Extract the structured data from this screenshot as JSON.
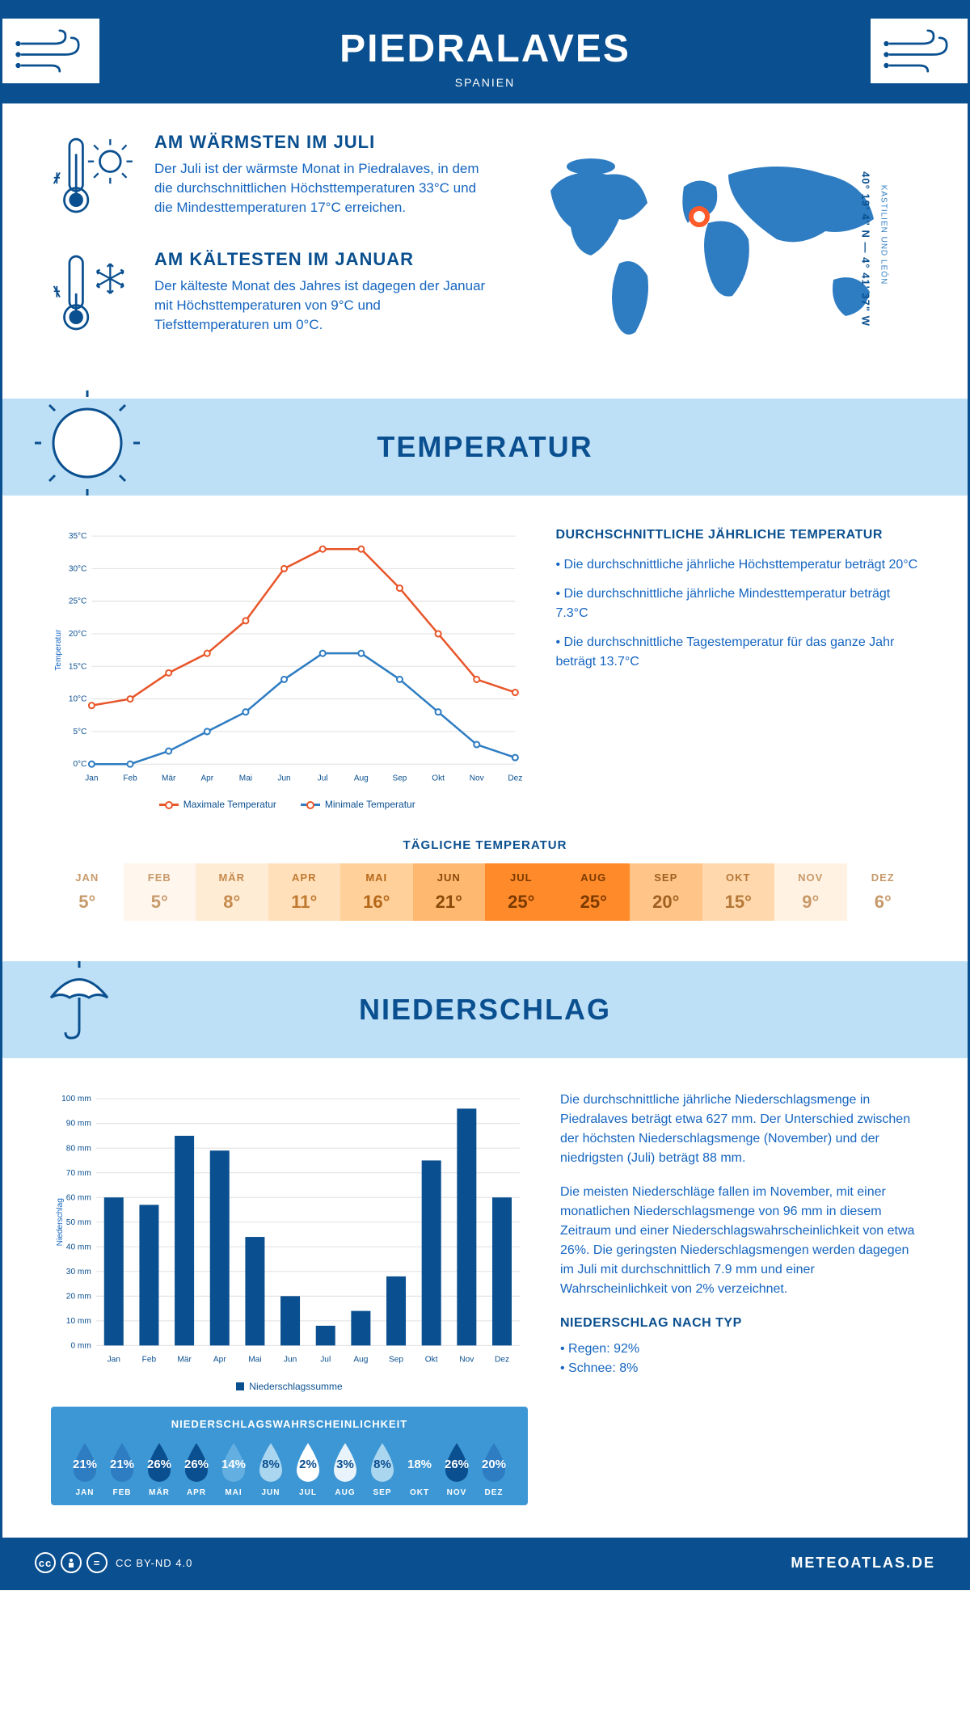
{
  "header": {
    "city": "PIEDRALAVES",
    "country": "SPANIEN"
  },
  "coords": {
    "text": "40° 19' 4\" N — 4° 41' 37\" W",
    "region": "KASTILIEN UND LEÓN"
  },
  "features": {
    "warm": {
      "title": "AM WÄRMSTEN IM JULI",
      "text": "Der Juli ist der wärmste Monat in Piedralaves, in dem die durchschnittlichen Höchsttemperaturen 33°C und die Mindesttemperaturen 17°C erreichen."
    },
    "cold": {
      "title": "AM KÄLTESTEN IM JANUAR",
      "text": "Der kälteste Monat des Jahres ist dagegen der Januar mit Höchsttemperaturen von 9°C und Tiefsttemperaturen um 0°C."
    }
  },
  "temperature": {
    "section_title": "TEMPERATUR",
    "chart": {
      "months": [
        "Jan",
        "Feb",
        "Mär",
        "Apr",
        "Mai",
        "Jun",
        "Jul",
        "Aug",
        "Sep",
        "Okt",
        "Nov",
        "Dez"
      ],
      "max": [
        9,
        10,
        14,
        17,
        22,
        30,
        33,
        33,
        27,
        20,
        13,
        11
      ],
      "min": [
        0,
        0,
        2,
        5,
        8,
        13,
        17,
        17,
        13,
        8,
        3,
        1
      ],
      "y_ticks": [
        0,
        5,
        10,
        15,
        20,
        25,
        30,
        35
      ],
      "y_labels": [
        "0°C",
        "5°C",
        "10°C",
        "15°C",
        "20°C",
        "25°C",
        "30°C",
        "35°C"
      ],
      "ylabel": "Temperatur",
      "max_color": "#e8562a",
      "min_color": "#2e7cc2",
      "grid_color": "#e0e0e0",
      "legend_max": "Maximale Temperatur",
      "legend_min": "Minimale Temperatur"
    },
    "summary": {
      "title": "DURCHSCHNITTLICHE JÄHRLICHE TEMPERATUR",
      "b1": "• Die durchschnittliche jährliche Höchsttemperatur beträgt 20°C",
      "b2": "• Die durchschnittliche jährliche Mindesttemperatur beträgt 7.3°C",
      "b3": "• Die durchschnittliche Tagestemperatur für das ganze Jahr beträgt 13.7°C"
    },
    "daily": {
      "title": "TÄGLICHE TEMPERATUR",
      "months": [
        "JAN",
        "FEB",
        "MÄR",
        "APR",
        "MAI",
        "JUN",
        "JUL",
        "AUG",
        "SEP",
        "OKT",
        "NOV",
        "DEZ"
      ],
      "values": [
        "5°",
        "5°",
        "8°",
        "11°",
        "16°",
        "21°",
        "25°",
        "25°",
        "20°",
        "15°",
        "9°",
        "6°"
      ],
      "bg_colors": [
        "#ffffff",
        "#fff6ed",
        "#ffecd5",
        "#ffe0bb",
        "#ffd09a",
        "#ffb870",
        "#ff8a2a",
        "#ff8a2a",
        "#ffc588",
        "#ffd9ad",
        "#fff2e2",
        "#ffffff"
      ],
      "text_colors": [
        "#c79a6b",
        "#c79a6b",
        "#c48a4d",
        "#c07a30",
        "#b56718",
        "#8a4a0a",
        "#7a3a00",
        "#7a3a00",
        "#a06020",
        "#b57838",
        "#c79a6b",
        "#c79a6b"
      ]
    }
  },
  "precip": {
    "section_title": "NIEDERSCHLAG",
    "chart": {
      "months": [
        "Jan",
        "Feb",
        "Mär",
        "Apr",
        "Mai",
        "Jun",
        "Jul",
        "Aug",
        "Sep",
        "Okt",
        "Nov",
        "Dez"
      ],
      "values": [
        60,
        57,
        85,
        79,
        44,
        20,
        8,
        14,
        28,
        75,
        96,
        60
      ],
      "y_ticks": [
        0,
        10,
        20,
        30,
        40,
        50,
        60,
        70,
        80,
        90,
        100
      ],
      "y_labels": [
        "0 mm",
        "10 mm",
        "20 mm",
        "30 mm",
        "40 mm",
        "50 mm",
        "60 mm",
        "70 mm",
        "80 mm",
        "90 mm",
        "100 mm"
      ],
      "ylabel": "Niederschlag",
      "bar_color": "#0a4f8f",
      "grid_color": "#e0e0e0",
      "legend": "Niederschlagssumme"
    },
    "text": {
      "p1": "Die durchschnittliche jährliche Niederschlagsmenge in Piedralaves beträgt etwa 627 mm. Der Unterschied zwischen der höchsten Niederschlagsmenge (November) und der niedrigsten (Juli) beträgt 88 mm.",
      "p2": "Die meisten Niederschläge fallen im November, mit einer monatlichen Niederschlagsmenge von 96 mm in diesem Zeitraum und einer Niederschlagswahrscheinlichkeit von etwa 26%. Die geringsten Niederschlagsmengen werden dagegen im Juli mit durchschnittlich 7.9 mm und einer Wahrscheinlichkeit von 2% verzeichnet.",
      "type_title": "NIEDERSCHLAG NACH TYP",
      "type_b1": "• Regen: 92%",
      "type_b2": "• Schnee: 8%"
    },
    "prob": {
      "title": "NIEDERSCHLAGSWAHRSCHEINLICHKEIT",
      "months": [
        "JAN",
        "FEB",
        "MÄR",
        "APR",
        "MAI",
        "JUN",
        "JUL",
        "AUG",
        "SEP",
        "OKT",
        "NOV",
        "DEZ"
      ],
      "values": [
        "21%",
        "21%",
        "26%",
        "26%",
        "14%",
        "8%",
        "2%",
        "3%",
        "8%",
        "18%",
        "26%",
        "20%"
      ],
      "colors": [
        "#2e7cc2",
        "#2e7cc2",
        "#0a4f8f",
        "#0a4f8f",
        "#64afe2",
        "#abd6f0",
        "#ffffff",
        "#e8f3fb",
        "#abd6f0",
        "#3d97d4",
        "#0a4f8f",
        "#2e7cc2"
      ],
      "text_colors": [
        "#ffffff",
        "#ffffff",
        "#ffffff",
        "#ffffff",
        "#ffffff",
        "#0a4f8f",
        "#0a4f8f",
        "#0a4f8f",
        "#0a4f8f",
        "#ffffff",
        "#ffffff",
        "#ffffff"
      ]
    }
  },
  "footer": {
    "license": "CC BY-ND 4.0",
    "brand": "METEOATLAS.DE"
  },
  "colors": {
    "primary": "#0a4f8f",
    "accent": "#2e7cc2",
    "banner_bg": "#bee0f7"
  }
}
